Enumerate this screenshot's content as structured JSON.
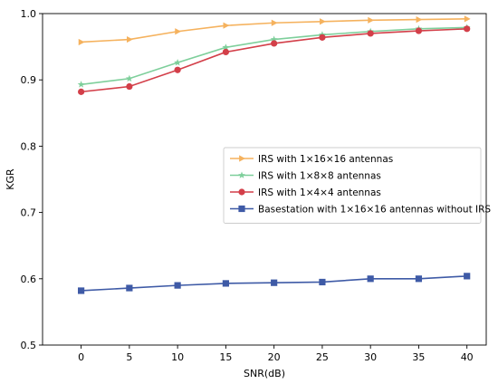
{
  "chart_data": {
    "type": "line",
    "title": "",
    "xlabel": "SNR(dB)",
    "ylabel": "KGR",
    "xlim": [
      -4,
      42
    ],
    "ylim": [
      0.5,
      1.0
    ],
    "xticks": [
      0,
      5,
      10,
      15,
      20,
      25,
      30,
      35,
      40
    ],
    "yticks": [
      0.5,
      0.6,
      0.7,
      0.8,
      0.9,
      1.0
    ],
    "ytick_labels": [
      "0.5",
      "0.6",
      "0.7",
      "0.8",
      "0.9",
      "1.0"
    ],
    "grid": false,
    "legend_position": "center-right",
    "x": [
      0,
      5,
      10,
      15,
      20,
      25,
      30,
      35,
      40
    ],
    "series": [
      {
        "name": "IRS with 1×16×16 antennas",
        "marker": "triangle-right",
        "color": "#f5b25e",
        "values": [
          0.957,
          0.961,
          0.973,
          0.982,
          0.986,
          0.988,
          0.99,
          0.991,
          0.992
        ]
      },
      {
        "name": "IRS with 1×8×8 antennas",
        "marker": "star",
        "color": "#7ecf9b",
        "values": [
          0.893,
          0.902,
          0.926,
          0.949,
          0.961,
          0.968,
          0.973,
          0.977,
          0.979
        ]
      },
      {
        "name": "IRS with 1×4×4 antennas",
        "marker": "circle",
        "color": "#d33f49",
        "values": [
          0.882,
          0.89,
          0.915,
          0.942,
          0.955,
          0.964,
          0.97,
          0.974,
          0.977
        ]
      },
      {
        "name": "Basestation with 1×16×16 antennas without IRS",
        "marker": "square",
        "color": "#3e5aa6",
        "values": [
          0.582,
          0.586,
          0.59,
          0.593,
          0.594,
          0.595,
          0.6,
          0.6,
          0.604
        ]
      }
    ]
  }
}
